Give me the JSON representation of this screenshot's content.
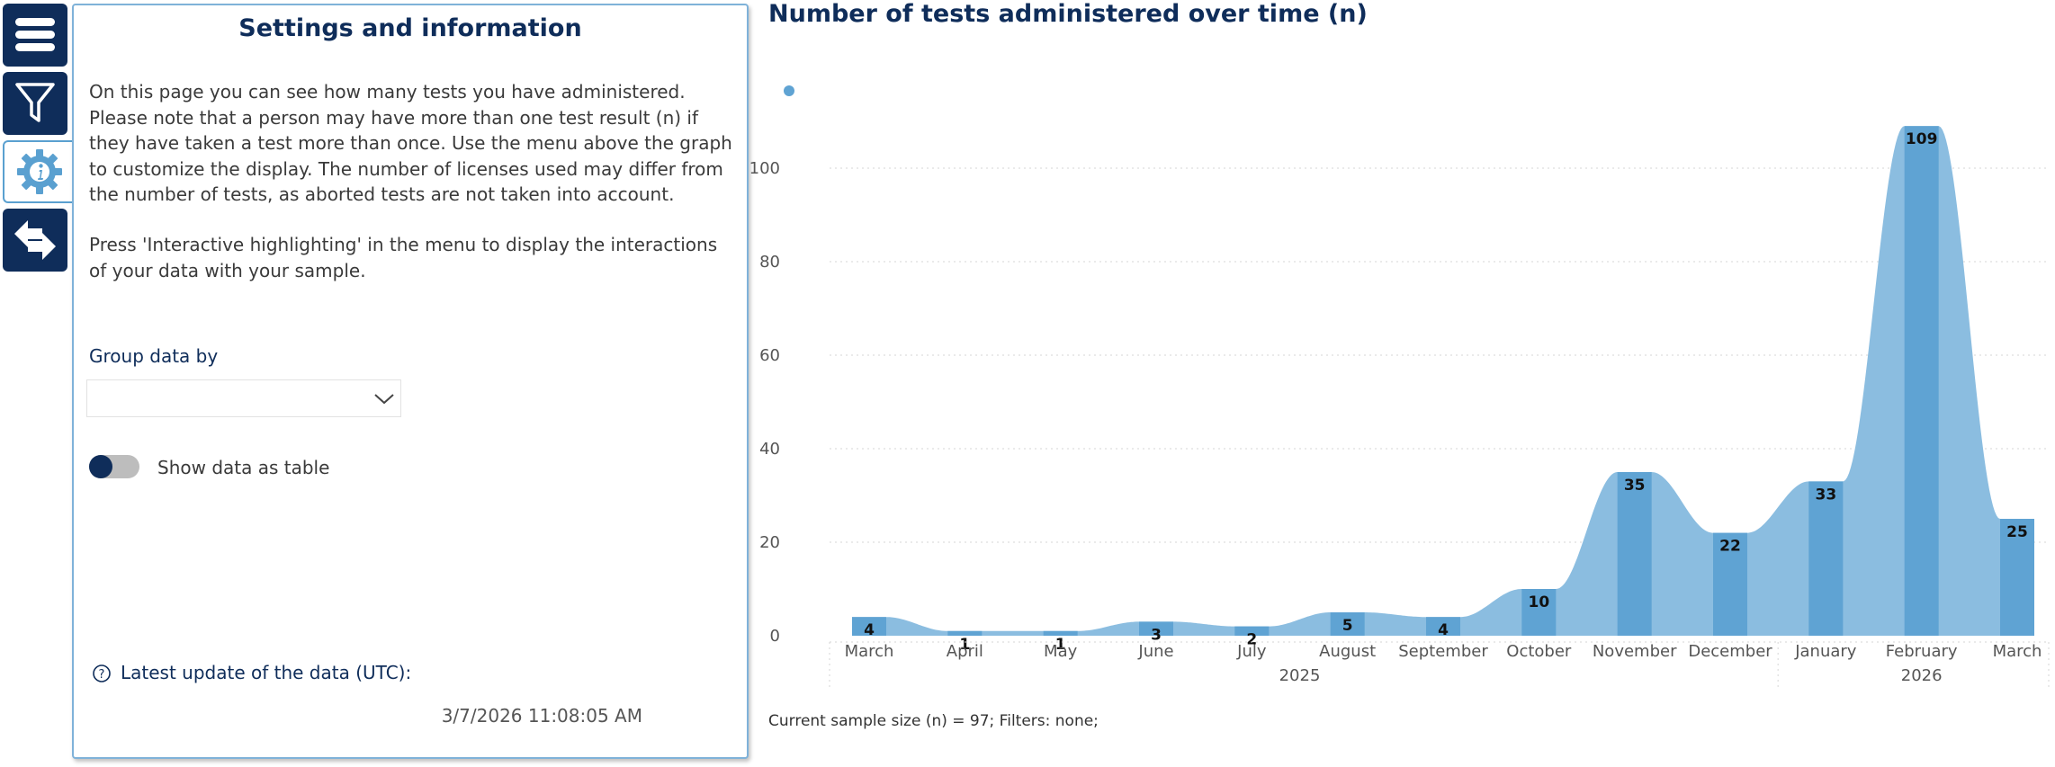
{
  "nav": {
    "items": [
      {
        "name": "menu"
      },
      {
        "name": "filter"
      },
      {
        "name": "settings-info",
        "active": true
      },
      {
        "name": "navigate"
      }
    ]
  },
  "panel": {
    "title": "Settings and information",
    "paragraph1": "On this page you can see how many tests you have administered. Please note that a person may have more than one test result (n) if they have taken a test more than once. Use the menu above the graph to customize the display. The number of licenses used may differ from the number of tests, as aborted tests are not taken into account.",
    "paragraph2": "Press 'Interactive highlighting' in the menu to display the interactions of your data with your sample.",
    "group_label": "Group data by",
    "group_value": "",
    "toggle_label": "Show data as table",
    "toggle_on": false,
    "update_label": "Latest update of the data (UTC):",
    "update_value": "3/7/2026 11:08:05 AM"
  },
  "chart_title": "Number of tests administered over time (n)",
  "footer": "Current sample size (n) = 97; Filters: none;",
  "colors": {
    "navy": "#0f2d5a",
    "bar": "#5fa3d3",
    "area": "#8bbde0",
    "grid": "#d6d6d6"
  },
  "chart_data": {
    "type": "bar",
    "categories": [
      "March",
      "April",
      "May",
      "June",
      "July",
      "August",
      "September",
      "October",
      "November",
      "December",
      "January",
      "February",
      "March"
    ],
    "values": [
      4,
      1,
      1,
      3,
      2,
      5,
      4,
      10,
      35,
      22,
      33,
      109,
      25
    ],
    "years": [
      {
        "label": "2025",
        "from": 0,
        "to": 9
      },
      {
        "label": "2026",
        "from": 10,
        "to": 12
      }
    ],
    "yticks": [
      0,
      20,
      40,
      60,
      80,
      100
    ],
    "ylim": [
      0,
      110
    ],
    "title": "Number of tests administered over time (n)",
    "xlabel": "",
    "ylabel": ""
  }
}
